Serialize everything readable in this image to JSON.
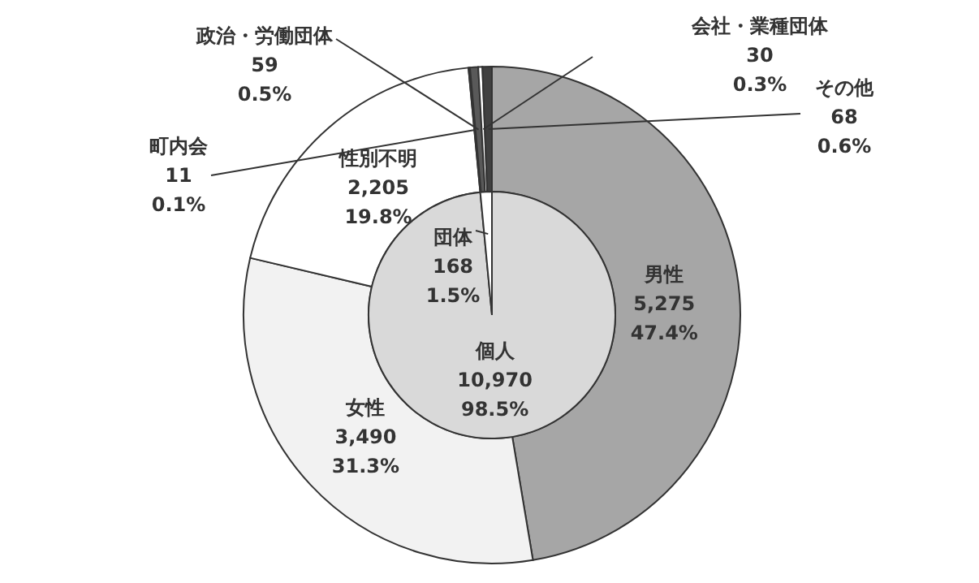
{
  "chart_data": [
    {
      "type": "pie",
      "categories": [
        "個人",
        "団体"
      ],
      "values": [
        10970,
        168
      ],
      "colors": [
        "#d9d9d9",
        "#ffffff"
      ],
      "value_labels": [
        "10,970\n98.5%",
        "168\n1.5%"
      ]
    },
    {
      "type": "donut",
      "categories": [
        "男性",
        "女性",
        "性別不明",
        "町内会",
        "政治・労働団体",
        "会社・業種団体",
        "その他"
      ],
      "values": [
        5275,
        3490,
        2205,
        11,
        59,
        30,
        68
      ],
      "colors": [
        "#a6a6a6",
        "#f2f2f2",
        "#ffffff",
        "#808080",
        "#595959",
        "#ffffff",
        "#404040"
      ],
      "value_labels": [
        "5,275\n47.4%",
        "3,490\n31.3%",
        "2,205\n19.8%",
        "11\n0.1%",
        "59\n0.5%",
        "30\n0.3%",
        "68\n0.6%"
      ]
    }
  ]
}
